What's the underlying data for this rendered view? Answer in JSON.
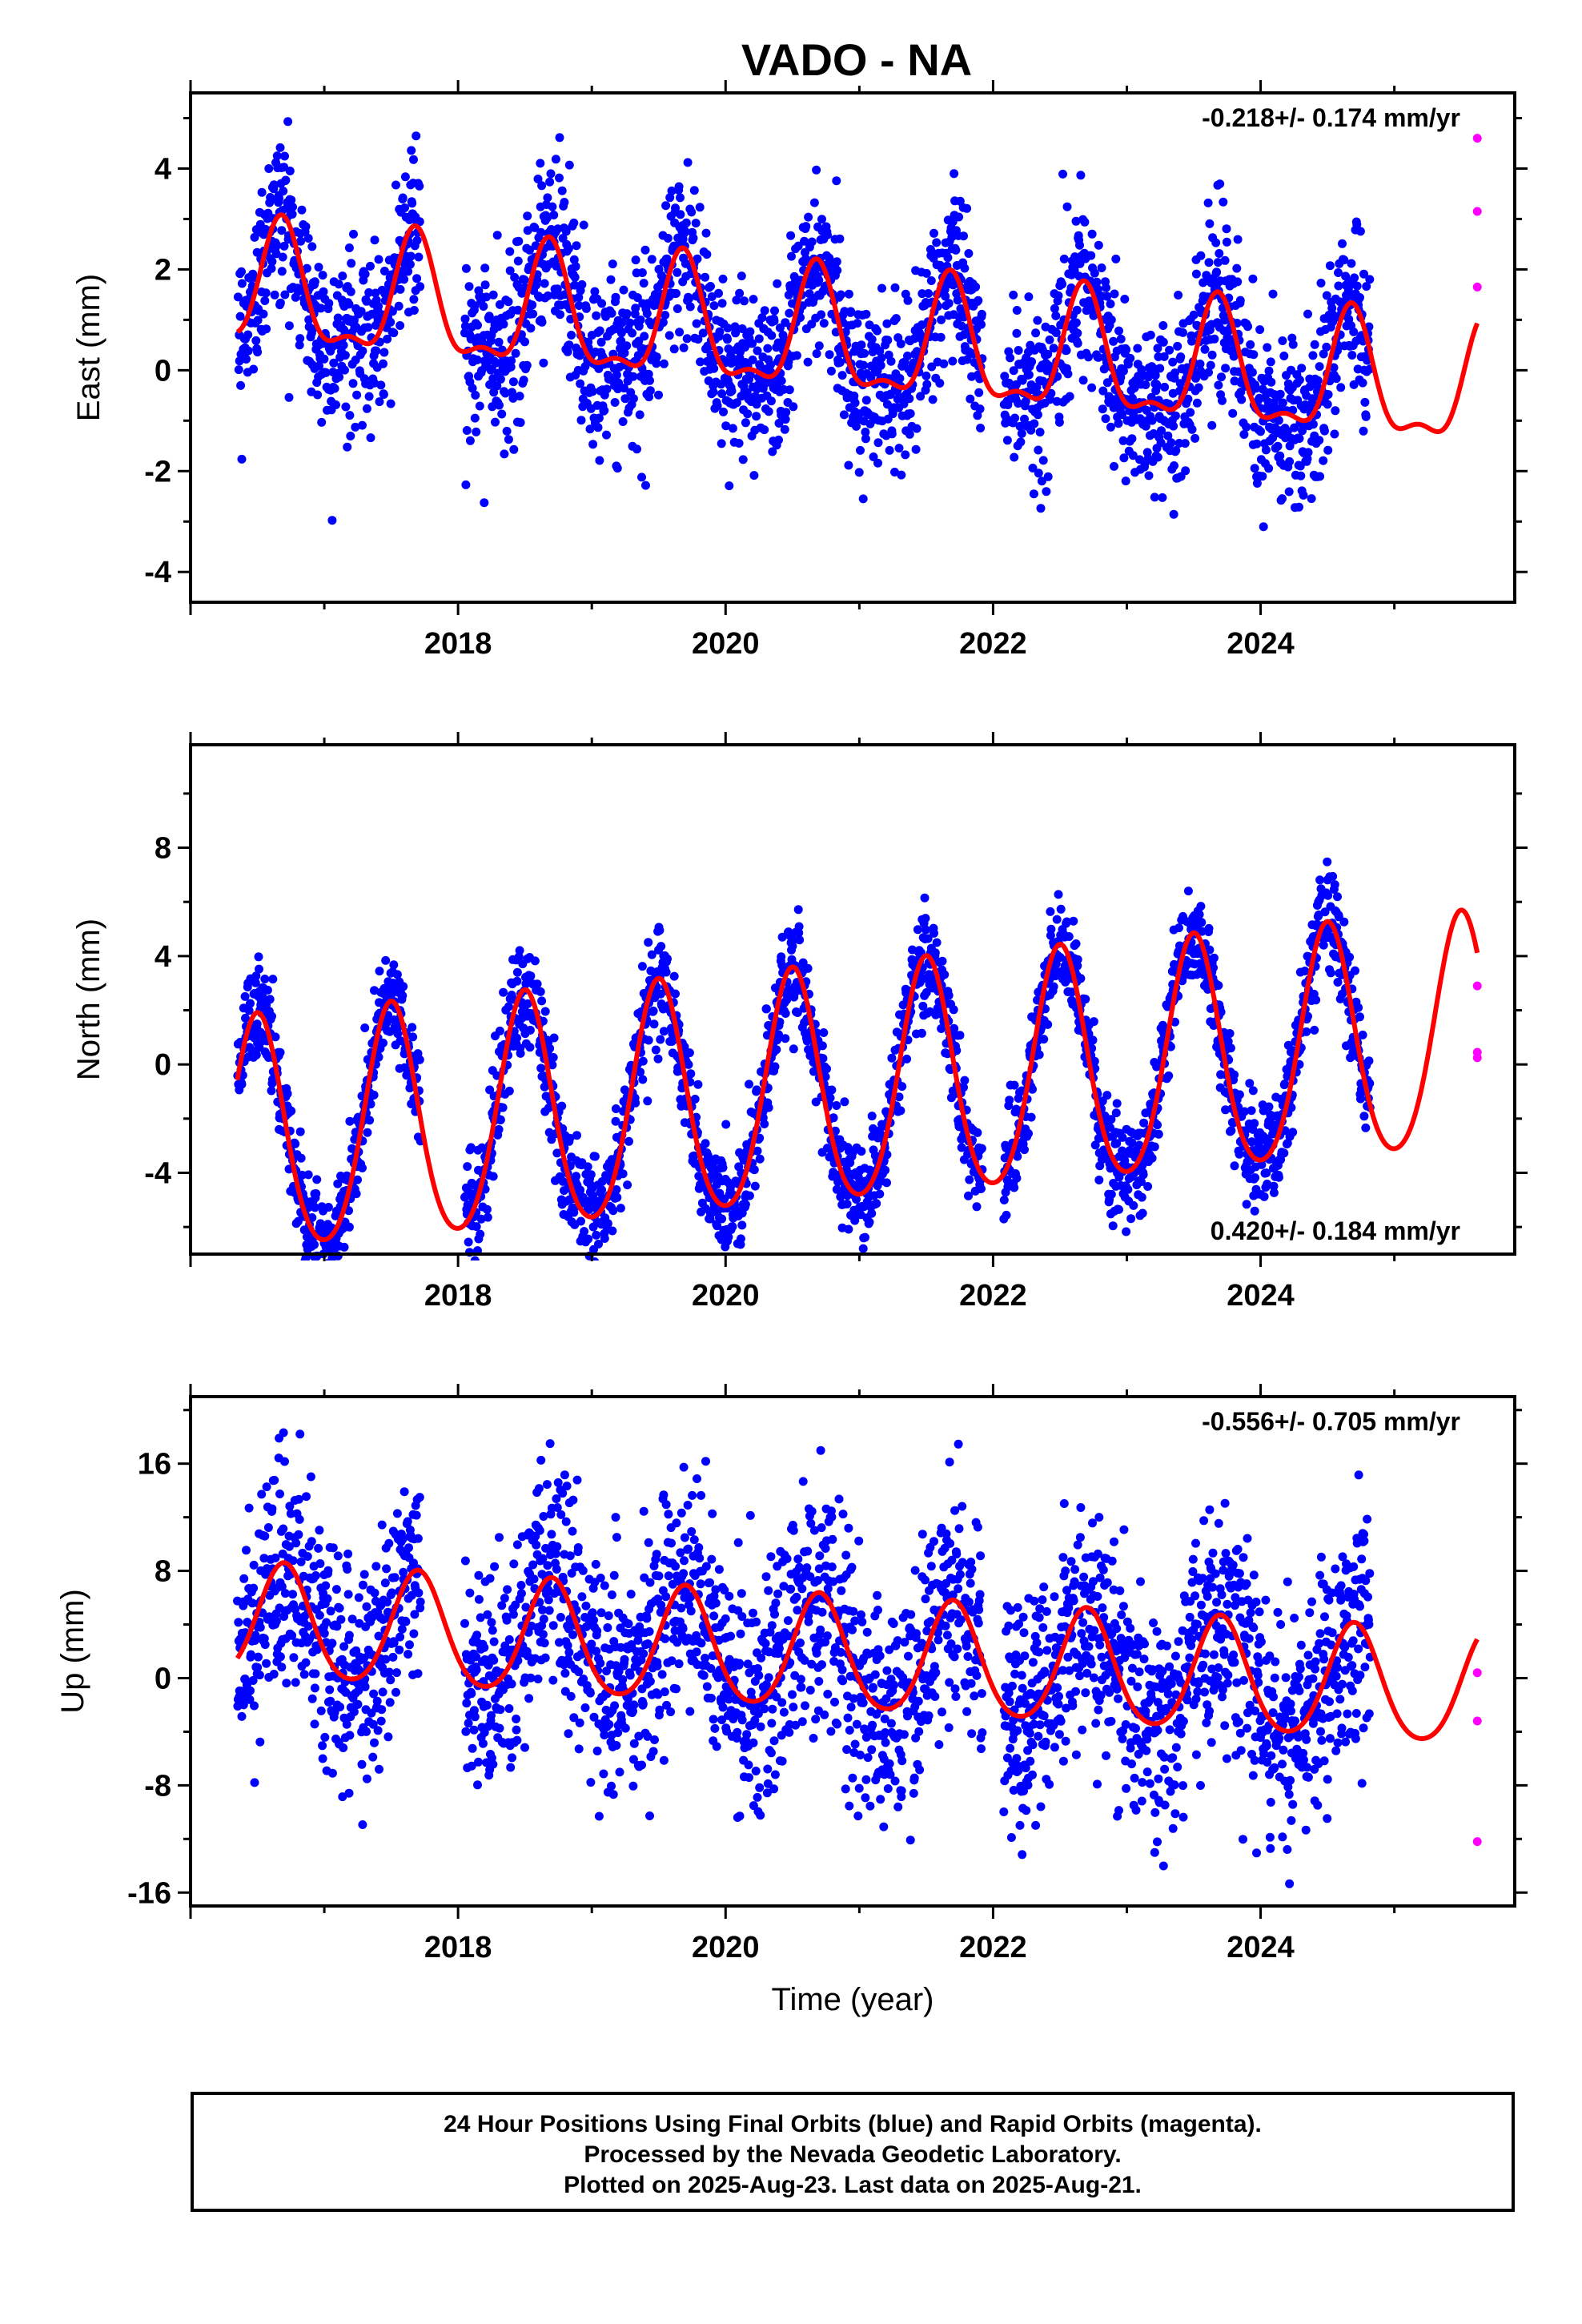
{
  "title": "VADO - NA",
  "footer": {
    "line1": "24 Hour Positions Using Final Orbits (blue) and Rapid Orbits (magenta).",
    "line2": "Processed by the Nevada Geodetic Laboratory.",
    "line3": "Plotted on 2025-Aug-23. Last data on 2025-Aug-21."
  },
  "colors": {
    "final": "#0000ff",
    "rapid": "#ff00ff",
    "model": "#ff0000",
    "frame": "#000000"
  },
  "chart_data": [
    {
      "type": "scatter",
      "component": "east",
      "ylabel": "East (mm)",
      "xlabel": "",
      "xlim": [
        2016.0,
        2025.9
      ],
      "ylim": [
        -4.6,
        5.5
      ],
      "xticks": [
        2018,
        2020,
        2022,
        2024
      ],
      "yticks": [
        -4,
        -2,
        0,
        2,
        4
      ],
      "rate": "-0.218+/- 0.174 mm/yr",
      "rate_position": "top-right",
      "data_start": 2016.35,
      "data_end": 2024.82,
      "final_orbit_gaps": [
        [
          2017.72,
          2018.05
        ],
        [
          2021.92,
          2022.08
        ]
      ],
      "model": {
        "trend_mm_per_yr": -0.218,
        "offset_mm": 0.65,
        "annual_amp_mm": 1.15,
        "annual_peak_year": 2016.68,
        "semiannual_amp_mm": 0.45,
        "scatter_sd_mm": 0.85
      },
      "rapid_points": [
        [
          2025.62,
          4.6
        ],
        [
          2025.62,
          3.15
        ],
        [
          2025.62,
          1.65
        ]
      ],
      "model_line_end": 2025.62
    },
    {
      "type": "scatter",
      "component": "north",
      "ylabel": "North (mm)",
      "xlabel": "",
      "xlim": [
        2016.0,
        2025.9
      ],
      "ylim": [
        -7.0,
        11.8
      ],
      "xticks": [
        2018,
        2020,
        2022,
        2024
      ],
      "yticks": [
        -4,
        0,
        4,
        8
      ],
      "rate": "0.420+/- 0.184 mm/yr",
      "rate_position": "bottom-right",
      "data_start": 2016.35,
      "data_end": 2024.82,
      "final_orbit_gaps": [
        [
          2017.72,
          2018.05
        ],
        [
          2021.92,
          2022.08
        ]
      ],
      "model": {
        "trend_mm_per_yr": 0.42,
        "offset_mm": -1.2,
        "annual_amp_mm": 4.3,
        "annual_peak_year": 2016.5,
        "semiannual_amp_mm": 0.5,
        "scatter_sd_mm": 0.95
      },
      "rapid_points": [
        [
          2025.62,
          2.9
        ],
        [
          2025.62,
          0.45
        ],
        [
          2025.62,
          0.25
        ]
      ],
      "model_line_end": 2025.62
    },
    {
      "type": "scatter",
      "component": "up",
      "ylabel": "Up (mm)",
      "xlabel": "Time (year)",
      "xlim": [
        2016.0,
        2025.9
      ],
      "ylim": [
        -17,
        21
      ],
      "xticks": [
        2018,
        2020,
        2022,
        2024
      ],
      "yticks": [
        -16,
        -8,
        0,
        8,
        16
      ],
      "rate": "-0.556+/- 0.705 mm/yr",
      "rate_position": "top-right",
      "data_start": 2016.35,
      "data_end": 2024.82,
      "final_orbit_gaps": [
        [
          2017.72,
          2018.05
        ],
        [
          2021.92,
          2022.08
        ]
      ],
      "model": {
        "trend_mm_per_yr": -0.556,
        "offset_mm": 1.8,
        "annual_amp_mm": 4.2,
        "annual_peak_year": 2016.7,
        "semiannual_amp_mm": 0.5,
        "scatter_sd_mm": 4.3
      },
      "rapid_points": [
        [
          2025.62,
          0.4
        ],
        [
          2025.62,
          -3.2
        ],
        [
          2025.62,
          -12.2
        ]
      ],
      "model_line_end": 2025.62
    }
  ]
}
